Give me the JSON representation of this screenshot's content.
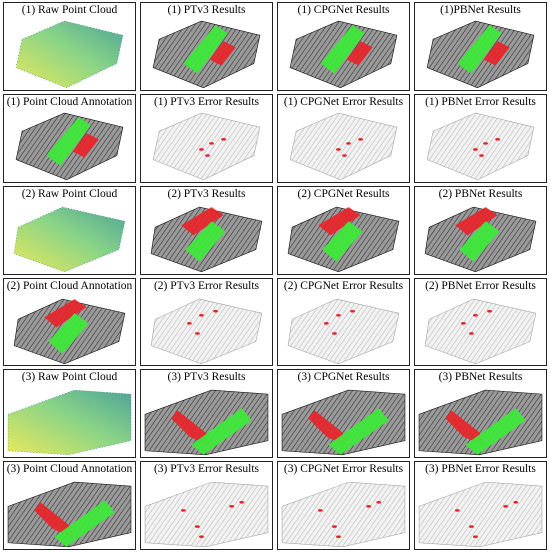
{
  "panels": [
    {
      "caption": "(1) Raw Point Cloud",
      "kind": "raw",
      "scene": 1
    },
    {
      "caption": "(1) PTv3 Results",
      "kind": "result",
      "scene": 1
    },
    {
      "caption": "(1) CPGNet Results",
      "kind": "result",
      "scene": 1
    },
    {
      "caption": "(1)PBNet Results",
      "kind": "result",
      "scene": 1
    },
    {
      "caption": "(1) Point Cloud Annotation",
      "kind": "annotation",
      "scene": 1
    },
    {
      "caption": "(1) PTv3 Error Results",
      "kind": "error",
      "scene": 1
    },
    {
      "caption": "(1) CPGNet Error Results",
      "kind": "error",
      "scene": 1
    },
    {
      "caption": "(1) PBNet Error Results",
      "kind": "error",
      "scene": 1
    },
    {
      "caption": "(2) Raw Point Cloud",
      "kind": "raw",
      "scene": 2
    },
    {
      "caption": "(2) PTv3 Results",
      "kind": "result",
      "scene": 2
    },
    {
      "caption": "(2) CPGNet Results",
      "kind": "result",
      "scene": 2
    },
    {
      "caption": "(2) PBNet Results",
      "kind": "result",
      "scene": 2
    },
    {
      "caption": "(2) Point Cloud Annotation",
      "kind": "annotation",
      "scene": 2
    },
    {
      "caption": "(2) PTv3 Error Results",
      "kind": "error",
      "scene": 2
    },
    {
      "caption": "(2) CPGNet Error Results",
      "kind": "error",
      "scene": 2
    },
    {
      "caption": "(2) PBNet Error Results",
      "kind": "error",
      "scene": 2
    },
    {
      "caption": "(3) Raw Point Cloud",
      "kind": "raw",
      "scene": 3
    },
    {
      "caption": "(3) PTv3 Results",
      "kind": "result",
      "scene": 3
    },
    {
      "caption": "(3) CPGNet Results",
      "kind": "result",
      "scene": 3
    },
    {
      "caption": "(3) PBNet Results",
      "kind": "result",
      "scene": 3
    },
    {
      "caption": "(3) Point Cloud Annotation",
      "kind": "annotation",
      "scene": 3
    },
    {
      "caption": "(3) PTv3 Error Results",
      "kind": "error",
      "scene": 3
    },
    {
      "caption": "(3) CPGNet Error Results",
      "kind": "error",
      "scene": 3
    },
    {
      "caption": "(3) PBNet Error Results",
      "kind": "error",
      "scene": 3
    }
  ],
  "colors": {
    "green_class": "#3ee83a",
    "red_class": "#e8242a",
    "dark_points": "#2a2a2a",
    "light_points": "#b8b8b8",
    "raw_low": "#3a9a8c",
    "raw_high": "#e6e64a"
  }
}
